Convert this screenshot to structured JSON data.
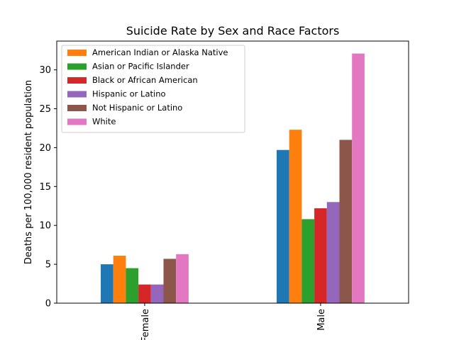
{
  "chart_data": {
    "type": "bar",
    "title": "Suicide Rate by Sex and Race Factors",
    "xlabel": "",
    "ylabel": "Deaths per 100,000 resident population",
    "categories": [
      "Female",
      "Male"
    ],
    "ylim": [
      0,
      33.7
    ],
    "yticks": [
      0,
      5,
      10,
      15,
      20,
      25,
      30
    ],
    "grid": false,
    "legend_position": "top-left",
    "series": [
      {
        "name": "",
        "color": "#1f77b4",
        "values": [
          5.0,
          19.7
        ]
      },
      {
        "name": "American Indian or Alaska Native",
        "color": "#ff7f0e",
        "values": [
          6.1,
          22.3
        ]
      },
      {
        "name": "Asian or Pacific Islander",
        "color": "#2ca02c",
        "values": [
          4.5,
          10.8
        ]
      },
      {
        "name": "Black or African American",
        "color": "#d62728",
        "values": [
          2.4,
          12.2
        ]
      },
      {
        "name": "Hispanic or Latino",
        "color": "#9467bd",
        "values": [
          2.4,
          13.0
        ]
      },
      {
        "name": "Not Hispanic or Latino",
        "color": "#8c564b",
        "values": [
          5.7,
          21.0
        ]
      },
      {
        "name": "White",
        "color": "#e377c2",
        "values": [
          6.3,
          32.1
        ]
      }
    ]
  }
}
